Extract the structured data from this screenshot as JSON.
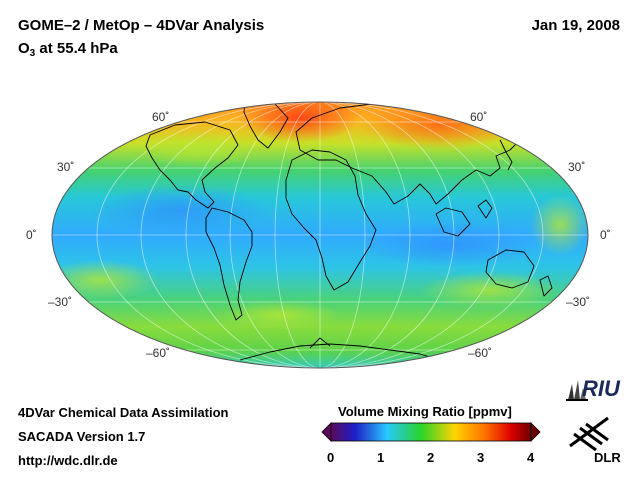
{
  "header": {
    "title": "GOME–2 / MetOp – 4DVar Analysis",
    "date": "Jan 19, 2008",
    "species": "O",
    "species_sub": "3",
    "level": " at 55.4 hPa"
  },
  "map": {
    "projection": "Hammer / Aitoff-like equal-area, global",
    "lat_labels": {
      "n60": "60˚",
      "n30": "30˚",
      "eq": "0˚",
      "s30": "–30˚",
      "s60": "–60˚"
    }
  },
  "colorbar": {
    "title": "Volume Mixing Ratio [ppmv]",
    "ticks": [
      "0",
      "1",
      "2",
      "3",
      "4"
    ],
    "colors": [
      "#5a0a5a",
      "#1e1ec8",
      "#28c8ff",
      "#2ad42a",
      "#ffd400",
      "#ff7800",
      "#e00000",
      "#6a0000"
    ]
  },
  "footer": {
    "line1": "4DVar Chemical Data Assimilation",
    "line2": "SACADA Version 1.7",
    "line3": "http://wdc.dlr.de"
  },
  "logos": {
    "riu": "RIU",
    "dlr": "DLR"
  }
}
